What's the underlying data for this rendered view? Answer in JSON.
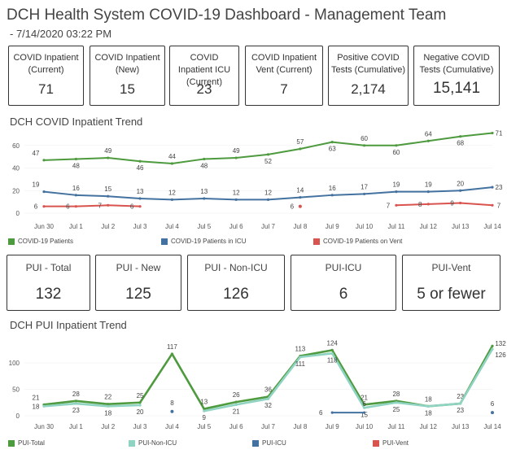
{
  "header": {
    "title": "DCH Health System COVID-19 Dashboard - Management Team",
    "subtitle": "- 7/14/2020 03:22 PM"
  },
  "kpis_top": [
    {
      "label": "COVID Inpatient (Current)",
      "value": "71"
    },
    {
      "label": "COVID Inpatient (New)",
      "value": "15"
    },
    {
      "label": "COVID Inpatient ICU (Current)",
      "value": "23"
    },
    {
      "label": "COVID Inpatient Vent (Current)",
      "value": "7"
    },
    {
      "label": "Positive COVID Tests (Cumulative)",
      "value": "2,174"
    },
    {
      "label": "Negative COVID Tests (Cumulative)",
      "value": "15,141"
    }
  ],
  "kpis_pui": [
    {
      "label": "PUI - Total",
      "value": "132"
    },
    {
      "label": "PUI - New",
      "value": "125"
    },
    {
      "label": "PUI - Non-ICU",
      "value": "126"
    },
    {
      "label": "PUI-ICU",
      "value": "6"
    },
    {
      "label": "PUI-Vent",
      "value": "5 or fewer"
    }
  ],
  "sections": {
    "covid_trend": "DCH COVID Inpatient Trend",
    "pui_trend": "DCH PUI Inpatient Trend"
  },
  "colors": {
    "green": "#4e9a3e",
    "lightgreen": "#8fd3c2",
    "blue": "#4472a0",
    "red": "#d9534f"
  },
  "chart_data": [
    {
      "type": "line",
      "title": "DCH COVID Inpatient Trend",
      "categories": [
        "Jun 30",
        "Jul 1",
        "Jul 2",
        "Jul 3",
        "Jul 4",
        "Jul 5",
        "Jul 6",
        "Jul 7",
        "Jul 8",
        "Jul 9",
        "Jul 10",
        "Jul 11",
        "Jul 12",
        "Jul 13",
        "Jul 14"
      ],
      "ylim": [
        0,
        75
      ],
      "yticks": [
        0,
        20,
        40,
        60
      ],
      "series": [
        {
          "name": "COVID-19 Patients",
          "color": "#4e9a3e",
          "values": [
            47,
            48,
            49,
            46,
            44,
            48,
            49,
            52,
            57,
            63,
            60,
            60,
            64,
            68,
            71
          ]
        },
        {
          "name": "COVID-19 Patients in ICU",
          "color": "#4472a0",
          "values": [
            19,
            16,
            15,
            13,
            12,
            13,
            12,
            12,
            14,
            16,
            17,
            19,
            19,
            20,
            23
          ]
        },
        {
          "name": "COVID-19 Patients on Vent",
          "color": "#d9534f",
          "values": [
            6,
            6,
            7,
            6,
            null,
            null,
            null,
            null,
            6,
            null,
            null,
            7,
            8,
            9,
            7
          ]
        }
      ]
    },
    {
      "type": "line",
      "title": "DCH PUI Inpatient Trend",
      "categories": [
        "Jun 30",
        "Jul 1",
        "Jul 2",
        "Jul 3",
        "Jul 4",
        "Jul 5",
        "Jul 6",
        "Jul 7",
        "Jul 8",
        "Jul 9",
        "Jul 10",
        "Jul 11",
        "Jul 12",
        "Jul 13",
        "Jul 14"
      ],
      "ylim": [
        0,
        140
      ],
      "yticks": [
        0,
        50,
        100
      ],
      "series": [
        {
          "name": "PUI-Total",
          "color": "#4e9a3e",
          "values": [
            21,
            28,
            22,
            25,
            117,
            13,
            26,
            36,
            113,
            124,
            21,
            28,
            18,
            23,
            132
          ]
        },
        {
          "name": "PUI-Non-ICU",
          "color": "#8fd3c2",
          "values": [
            18,
            23,
            18,
            20,
            null,
            9,
            21,
            32,
            111,
            118,
            15,
            25,
            18,
            23,
            126
          ]
        },
        {
          "name": "PUI-ICU",
          "color": "#4472a0",
          "values": [
            null,
            null,
            null,
            null,
            8,
            null,
            null,
            null,
            null,
            6,
            6,
            null,
            null,
            null,
            6
          ]
        },
        {
          "name": "PUI-Vent",
          "color": "#d9534f",
          "values": [
            null,
            null,
            null,
            null,
            null,
            null,
            null,
            null,
            null,
            null,
            null,
            null,
            null,
            null,
            null
          ]
        }
      ]
    }
  ]
}
